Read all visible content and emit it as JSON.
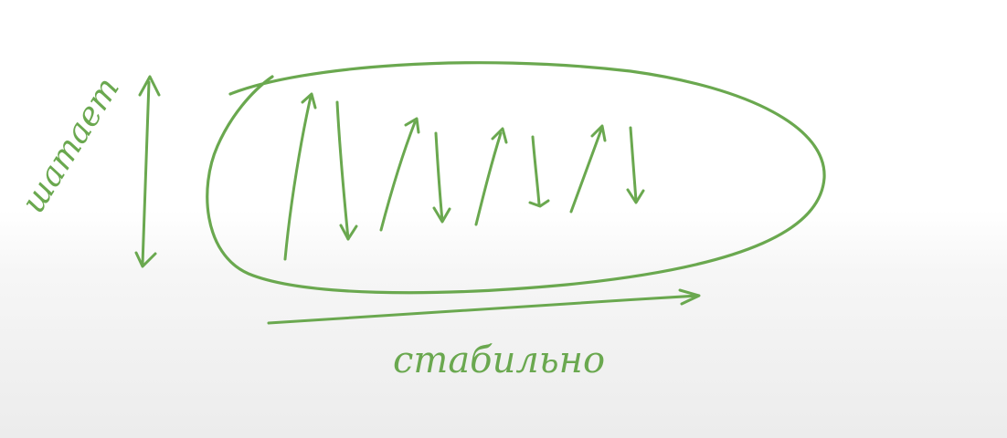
{
  "ink_color": "#6aa84f",
  "label_vertical": "шатает",
  "label_horizontal": "стабильно",
  "shapes": {
    "enclosure": "ellipse",
    "oscillation_arrows": [
      "up",
      "down",
      "up",
      "down",
      "up",
      "down",
      "up",
      "down"
    ],
    "vertical_arrow": "double-headed",
    "horizontal_arrow": "right"
  }
}
